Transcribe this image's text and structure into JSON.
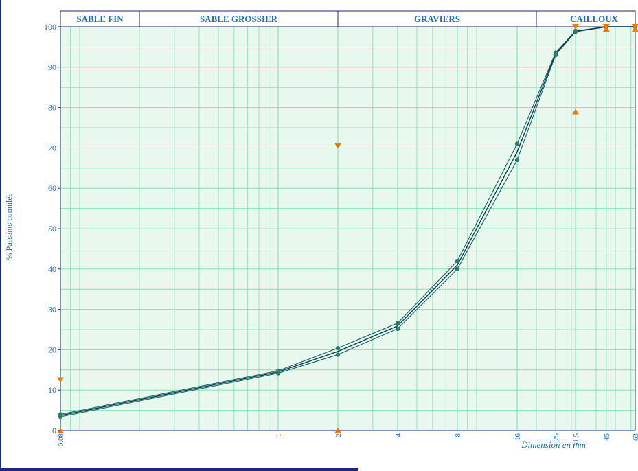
{
  "chart_data": {
    "type": "line",
    "xscale": "log",
    "x_ticks": [
      0.08,
      1,
      2,
      4,
      8,
      16,
      25,
      31.5,
      45,
      63
    ],
    "x_tick_labels": [
      "0.08",
      "1",
      "2",
      "4",
      "8",
      "16",
      "25",
      "31.5",
      "45",
      "63"
    ],
    "xlim": [
      0.08,
      63
    ],
    "ylim": [
      0,
      100
    ],
    "y_ticks": [
      0,
      10,
      20,
      30,
      40,
      50,
      60,
      70,
      80,
      90,
      100
    ],
    "ylabel": "% Passants cumulés",
    "xlabel": "Dimension en mm",
    "grid": true,
    "zones": [
      {
        "label": "SABLE FIN",
        "from": 0.08,
        "to": 0.2
      },
      {
        "label": "SABLE GROSSIER",
        "from": 0.2,
        "to": 2
      },
      {
        "label": "GRAVIERS",
        "from": 2,
        "to": 20
      },
      {
        "label": "CAILLOUX",
        "from": 20,
        "to": 63
      }
    ],
    "series": [
      {
        "x": [
          0.08,
          1,
          2,
          4,
          8,
          16,
          25,
          31.5,
          45,
          63
        ],
        "values": [
          4.0,
          14.8,
          20.4,
          26.6,
          42.0,
          71.0,
          93.6,
          99.0,
          100,
          100
        ]
      },
      {
        "x": [
          0.08,
          1,
          2,
          4,
          8,
          16,
          25,
          31.5,
          45,
          63
        ],
        "values": [
          3.4,
          14.2,
          18.8,
          25.2,
          40.0,
          67.0,
          93.0,
          98.8,
          100,
          100
        ]
      }
    ],
    "markers_down": [
      {
        "x": 0.08,
        "y": 12.5
      },
      {
        "x": 2,
        "y": 70.5
      },
      {
        "x": 31.5,
        "y": 100
      },
      {
        "x": 45,
        "y": 100
      },
      {
        "x": 63,
        "y": 100
      }
    ],
    "markers_up": [
      {
        "x": 0.08,
        "y": 0
      },
      {
        "x": 2,
        "y": 0
      },
      {
        "x": 31.5,
        "y": 79
      },
      {
        "x": 45,
        "y": 99.5
      },
      {
        "x": 63,
        "y": 99.5
      }
    ],
    "colors": {
      "background": "#e8f8ee",
      "grid": "#7fdcae",
      "curve": "#1f6b6b",
      "point": "#2f7a6a",
      "marker": "#f07800",
      "axis_text": "#1a6fd0",
      "frame": "#1a2a7a",
      "zone_text": "#1a6fd0"
    }
  }
}
